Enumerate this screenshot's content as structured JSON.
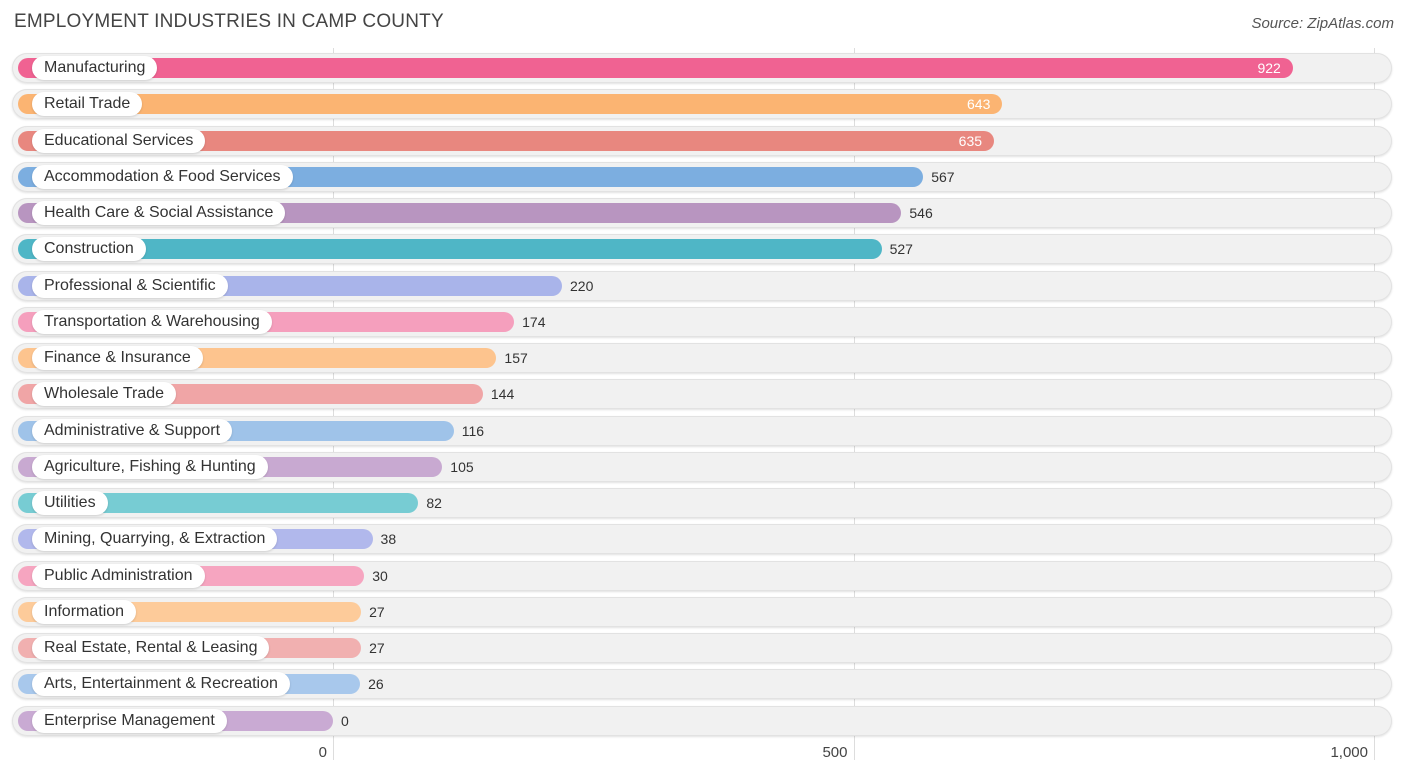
{
  "chart_data": {
    "type": "bar",
    "orientation": "horizontal",
    "title": "EMPLOYMENT INDUSTRIES IN CAMP COUNTY",
    "source": "Source: ZipAtlas.com",
    "xlim": [
      0,
      1000
    ],
    "ticks": [
      {
        "value": 0,
        "label": "0"
      },
      {
        "value": 500,
        "label": "500"
      },
      {
        "value": 1000,
        "label": "1,000"
      }
    ],
    "categories": [
      "Manufacturing",
      "Retail Trade",
      "Educational Services",
      "Accommodation & Food Services",
      "Health Care & Social Assistance",
      "Construction",
      "Professional & Scientific",
      "Transportation & Warehousing",
      "Finance & Insurance",
      "Wholesale Trade",
      "Administrative & Support",
      "Agriculture, Fishing & Hunting",
      "Utilities",
      "Mining, Quarrying, & Extraction",
      "Public Administration",
      "Information",
      "Real Estate, Rental & Leasing",
      "Arts, Entertainment & Recreation",
      "Enterprise Management"
    ],
    "values": [
      922,
      643,
      635,
      567,
      546,
      527,
      220,
      174,
      157,
      144,
      116,
      105,
      82,
      38,
      30,
      27,
      27,
      26,
      0
    ],
    "value_labels": [
      "922",
      "643",
      "635",
      "567",
      "546",
      "527",
      "220",
      "174",
      "157",
      "144",
      "116",
      "105",
      "82",
      "38",
      "30",
      "27",
      "27",
      "26",
      "0"
    ],
    "colors": [
      "#f06292",
      "#fbb472",
      "#e8877f",
      "#7caee0",
      "#b895c0",
      "#4fb6c6",
      "#a9b4ea",
      "#f59fbd",
      "#fdc48e",
      "#f0a5a6",
      "#9fc3e9",
      "#c8a9d1",
      "#77ccd3",
      "#b1b8ec",
      "#f6a5c0",
      "#fdcb9a",
      "#f1b0b0",
      "#a8c8ec",
      "#c9aad3"
    ]
  }
}
